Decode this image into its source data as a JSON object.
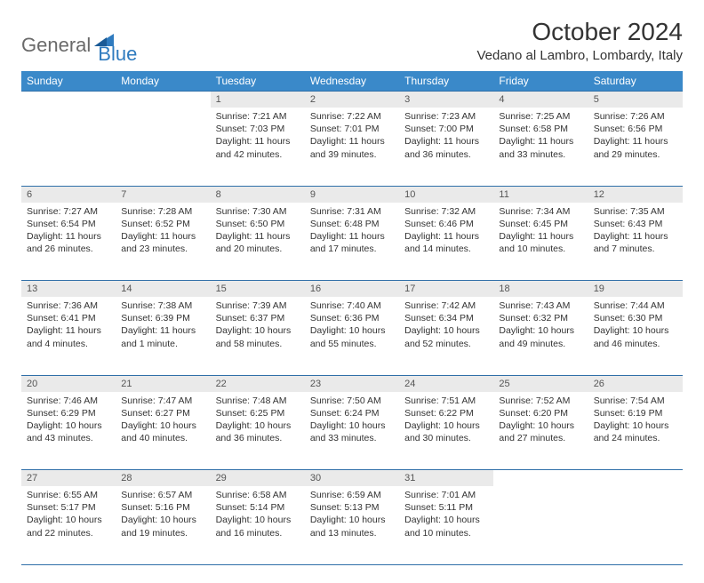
{
  "logo": {
    "part1": "General",
    "part2": "Blue"
  },
  "title": "October 2024",
  "location": "Vedano al Lambro, Lombardy, Italy",
  "colors": {
    "header_bg": "#3a89c9",
    "header_text": "#ffffff",
    "daynum_bg": "#eaeaea",
    "rule": "#2f6fa8",
    "logo_gray": "#6a6a6a",
    "logo_blue": "#2f7bbf"
  },
  "weekdays": [
    "Sunday",
    "Monday",
    "Tuesday",
    "Wednesday",
    "Thursday",
    "Friday",
    "Saturday"
  ],
  "weeks": [
    [
      null,
      null,
      {
        "n": "1",
        "sr": "7:21 AM",
        "ss": "7:03 PM",
        "dl": "11 hours and 42 minutes."
      },
      {
        "n": "2",
        "sr": "7:22 AM",
        "ss": "7:01 PM",
        "dl": "11 hours and 39 minutes."
      },
      {
        "n": "3",
        "sr": "7:23 AM",
        "ss": "7:00 PM",
        "dl": "11 hours and 36 minutes."
      },
      {
        "n": "4",
        "sr": "7:25 AM",
        "ss": "6:58 PM",
        "dl": "11 hours and 33 minutes."
      },
      {
        "n": "5",
        "sr": "7:26 AM",
        "ss": "6:56 PM",
        "dl": "11 hours and 29 minutes."
      }
    ],
    [
      {
        "n": "6",
        "sr": "7:27 AM",
        "ss": "6:54 PM",
        "dl": "11 hours and 26 minutes."
      },
      {
        "n": "7",
        "sr": "7:28 AM",
        "ss": "6:52 PM",
        "dl": "11 hours and 23 minutes."
      },
      {
        "n": "8",
        "sr": "7:30 AM",
        "ss": "6:50 PM",
        "dl": "11 hours and 20 minutes."
      },
      {
        "n": "9",
        "sr": "7:31 AM",
        "ss": "6:48 PM",
        "dl": "11 hours and 17 minutes."
      },
      {
        "n": "10",
        "sr": "7:32 AM",
        "ss": "6:46 PM",
        "dl": "11 hours and 14 minutes."
      },
      {
        "n": "11",
        "sr": "7:34 AM",
        "ss": "6:45 PM",
        "dl": "11 hours and 10 minutes."
      },
      {
        "n": "12",
        "sr": "7:35 AM",
        "ss": "6:43 PM",
        "dl": "11 hours and 7 minutes."
      }
    ],
    [
      {
        "n": "13",
        "sr": "7:36 AM",
        "ss": "6:41 PM",
        "dl": "11 hours and 4 minutes."
      },
      {
        "n": "14",
        "sr": "7:38 AM",
        "ss": "6:39 PM",
        "dl": "11 hours and 1 minute."
      },
      {
        "n": "15",
        "sr": "7:39 AM",
        "ss": "6:37 PM",
        "dl": "10 hours and 58 minutes."
      },
      {
        "n": "16",
        "sr": "7:40 AM",
        "ss": "6:36 PM",
        "dl": "10 hours and 55 minutes."
      },
      {
        "n": "17",
        "sr": "7:42 AM",
        "ss": "6:34 PM",
        "dl": "10 hours and 52 minutes."
      },
      {
        "n": "18",
        "sr": "7:43 AM",
        "ss": "6:32 PM",
        "dl": "10 hours and 49 minutes."
      },
      {
        "n": "19",
        "sr": "7:44 AM",
        "ss": "6:30 PM",
        "dl": "10 hours and 46 minutes."
      }
    ],
    [
      {
        "n": "20",
        "sr": "7:46 AM",
        "ss": "6:29 PM",
        "dl": "10 hours and 43 minutes."
      },
      {
        "n": "21",
        "sr": "7:47 AM",
        "ss": "6:27 PM",
        "dl": "10 hours and 40 minutes."
      },
      {
        "n": "22",
        "sr": "7:48 AM",
        "ss": "6:25 PM",
        "dl": "10 hours and 36 minutes."
      },
      {
        "n": "23",
        "sr": "7:50 AM",
        "ss": "6:24 PM",
        "dl": "10 hours and 33 minutes."
      },
      {
        "n": "24",
        "sr": "7:51 AM",
        "ss": "6:22 PM",
        "dl": "10 hours and 30 minutes."
      },
      {
        "n": "25",
        "sr": "7:52 AM",
        "ss": "6:20 PM",
        "dl": "10 hours and 27 minutes."
      },
      {
        "n": "26",
        "sr": "7:54 AM",
        "ss": "6:19 PM",
        "dl": "10 hours and 24 minutes."
      }
    ],
    [
      {
        "n": "27",
        "sr": "6:55 AM",
        "ss": "5:17 PM",
        "dl": "10 hours and 22 minutes."
      },
      {
        "n": "28",
        "sr": "6:57 AM",
        "ss": "5:16 PM",
        "dl": "10 hours and 19 minutes."
      },
      {
        "n": "29",
        "sr": "6:58 AM",
        "ss": "5:14 PM",
        "dl": "10 hours and 16 minutes."
      },
      {
        "n": "30",
        "sr": "6:59 AM",
        "ss": "5:13 PM",
        "dl": "10 hours and 13 minutes."
      },
      {
        "n": "31",
        "sr": "7:01 AM",
        "ss": "5:11 PM",
        "dl": "10 hours and 10 minutes."
      },
      null,
      null
    ]
  ],
  "labels": {
    "sunrise": "Sunrise:",
    "sunset": "Sunset:",
    "daylight": "Daylight:"
  }
}
